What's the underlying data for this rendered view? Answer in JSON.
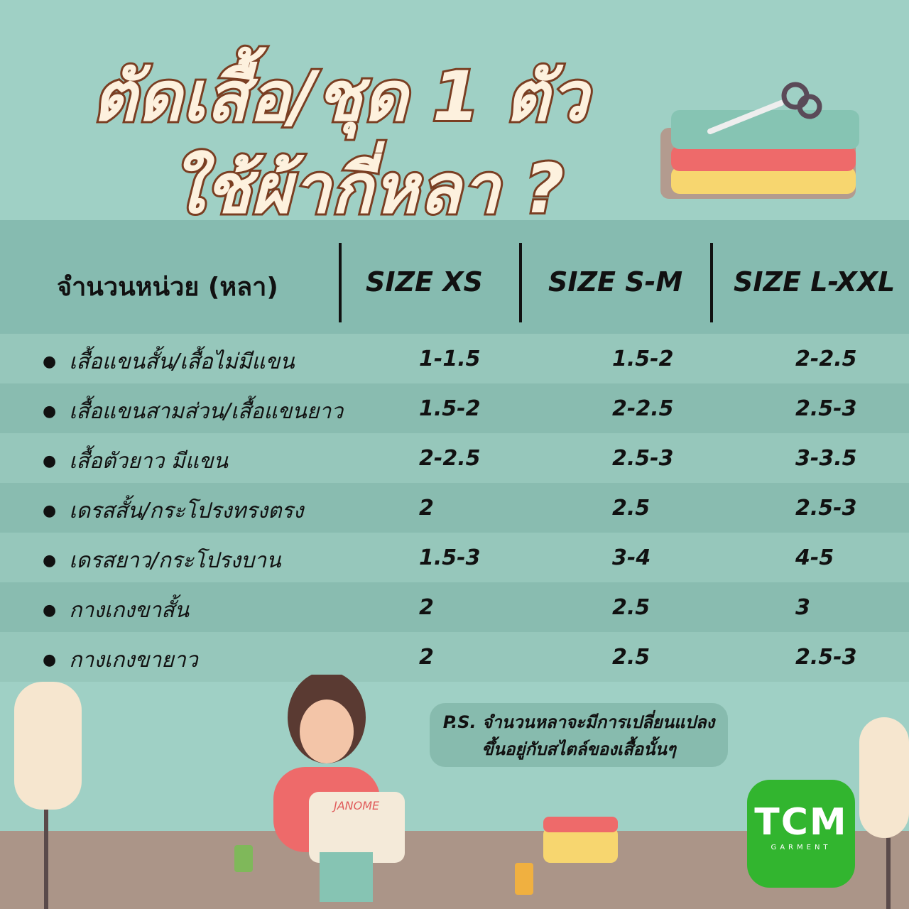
{
  "title": {
    "line1": "ตัดเสื้อ/ชุด 1 ตัว",
    "line2": "ใช้ผ้ากี่หลา ?"
  },
  "table": {
    "headers": [
      "จำนวนหน่วย (หลา)",
      "SIZE XS",
      "SIZE S-M",
      "SIZE L-XXL"
    ],
    "rows": [
      {
        "item": "เสื้อแขนสั้น/เสื้อไม่มีแขน",
        "xs": "1-1.5",
        "sm": "1.5-2",
        "lxxl": "2-2.5"
      },
      {
        "item": "เสื้อแขนสามส่วน/เสื้อแขนยาว",
        "xs": "1.5-2",
        "sm": "2-2.5",
        "lxxl": "2.5-3"
      },
      {
        "item": "เสื้อตัวยาว มีแขน",
        "xs": "2-2.5",
        "sm": "2.5-3",
        "lxxl": "3-3.5"
      },
      {
        "item": "เดรสสั้น/กระโปรงทรงตรง",
        "xs": "2",
        "sm": "2.5",
        "lxxl": "2.5-3"
      },
      {
        "item": "เดรสยาว/กระโปรงบาน",
        "xs": "1.5-3",
        "sm": "3-4",
        "lxxl": "4-5"
      },
      {
        "item": "กางเกงขาสั้น",
        "xs": "2",
        "sm": "2.5",
        "lxxl": "3"
      },
      {
        "item": "กางเกงขายาว",
        "xs": "2",
        "sm": "2.5",
        "lxxl": "2.5-3"
      }
    ]
  },
  "note": {
    "line1": "P.S. จำนวนหลาจะมีการเปลี่ยนแปลง",
    "line2": "ขึ้นอยู่กับสไตล์ของเสื้อนั้นๆ"
  },
  "illustration": {
    "machine_brand": "JANOME"
  },
  "logo": {
    "mark": "TCM",
    "sub": "GARMENT",
    "color": "#32b52f"
  }
}
